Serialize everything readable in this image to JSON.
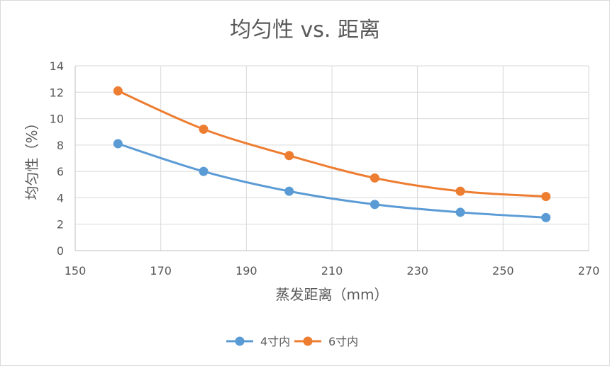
{
  "chart_data": {
    "type": "line",
    "title": "均匀性 vs. 距离",
    "xlabel": "蒸发距离（mm）",
    "ylabel": "均匀性（%）",
    "xlim": [
      150,
      270
    ],
    "ylim": [
      0,
      14
    ],
    "xticks": [
      150,
      170,
      190,
      210,
      230,
      250,
      270
    ],
    "yticks": [
      0,
      2,
      4,
      6,
      8,
      10,
      12,
      14
    ],
    "grid": true,
    "smooth": true,
    "legend": "bottom",
    "x": [
      160,
      180,
      200,
      220,
      240,
      260
    ],
    "series": [
      {
        "name": "4寸内",
        "color": "#5b9bd5",
        "values": [
          8.1,
          6.0,
          4.5,
          3.5,
          2.9,
          2.5
        ]
      },
      {
        "name": "6寸内",
        "color": "#ed7d31",
        "values": [
          12.1,
          9.2,
          7.2,
          5.5,
          4.5,
          4.1
        ]
      }
    ]
  }
}
